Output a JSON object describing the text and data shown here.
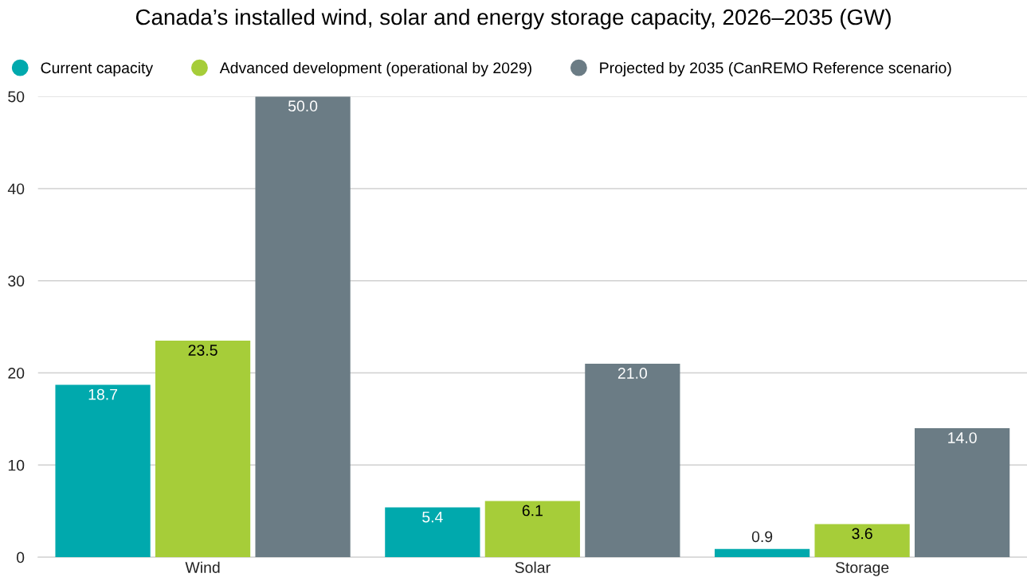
{
  "chart_data": {
    "type": "bar",
    "title": "Canada’s installed wind, solar and energy storage capacity, 2026–2035 (GW)",
    "categories": [
      "Wind",
      "Solar",
      "Storage"
    ],
    "series": [
      {
        "name": "Current capacity",
        "color": "#00a9ad",
        "values": [
          18.7,
          5.4,
          0.9
        ],
        "value_labels": [
          "18.7",
          "5.4",
          "0.9"
        ]
      },
      {
        "name": "Advanced development (operational by 2029)",
        "color": "#a6cd39",
        "values": [
          23.5,
          6.1,
          3.6
        ],
        "value_labels": [
          "23.5",
          "6.1",
          "3.6"
        ]
      },
      {
        "name": "Projected by 2035 (CanREMO Reference scenario)",
        "color": "#6b7c85",
        "values": [
          50,
          21,
          14
        ],
        "value_labels": [
          "50.0",
          "21.0",
          "14.0"
        ]
      }
    ],
    "ylim": [
      0,
      50
    ],
    "yticks": [
      0,
      10,
      20,
      30,
      40,
      50
    ],
    "grid": "y",
    "legend": "top left"
  }
}
